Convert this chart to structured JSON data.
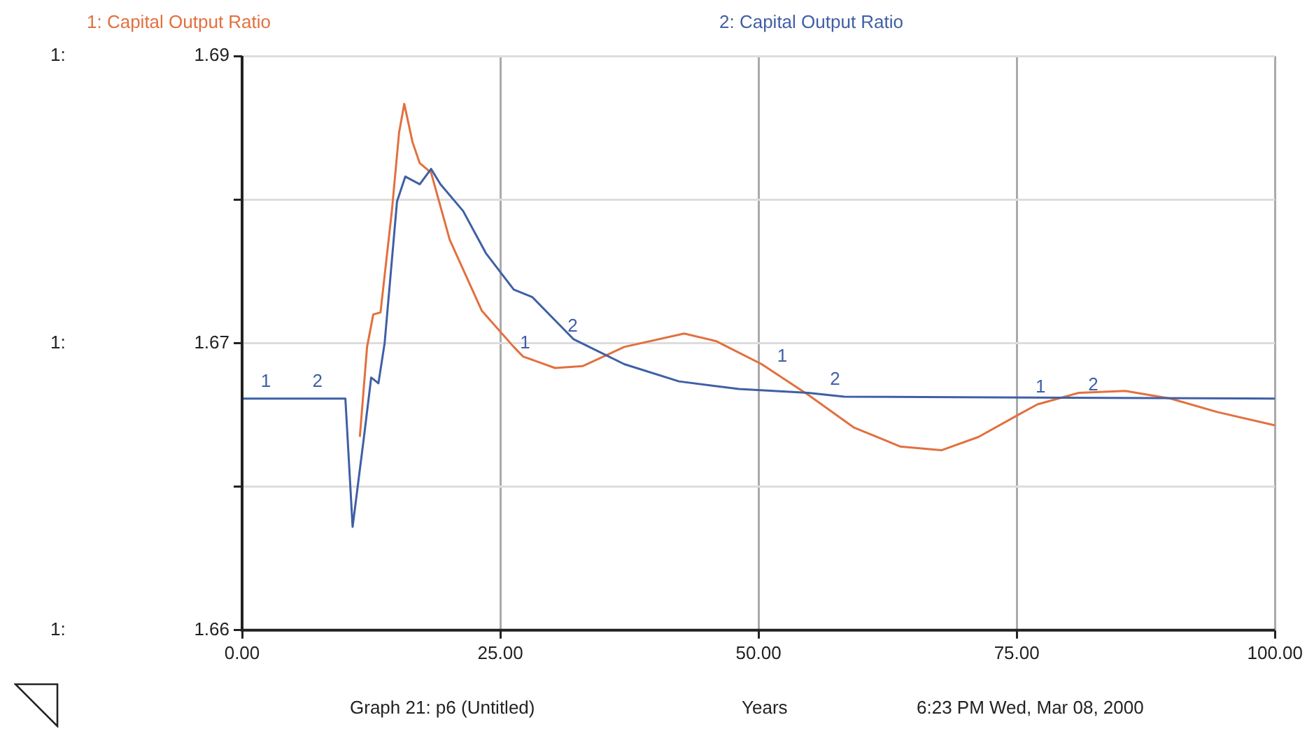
{
  "chart_data": {
    "type": "line",
    "xlabel": "Years",
    "xlim": [
      0,
      100
    ],
    "xticks": [
      {
        "value": 0,
        "label": "0.00"
      },
      {
        "value": 25,
        "label": "25.00"
      },
      {
        "value": 50,
        "label": "50.00"
      },
      {
        "value": 75,
        "label": "75.00"
      },
      {
        "value": 100,
        "label": "100.00"
      }
    ],
    "ylim": [
      1.66,
      1.69
    ],
    "yticks": [
      {
        "value": 1.66,
        "label": "1.66"
      },
      {
        "value": 1.6675,
        "label": null
      },
      {
        "value": 1.675,
        "label": "1.67"
      },
      {
        "value": 1.6825,
        "label": null
      },
      {
        "value": 1.69,
        "label": "1.69"
      }
    ],
    "grid": true,
    "legend": "top",
    "marker": "none",
    "line_style": "solid",
    "series": [
      {
        "name": "1: Capital Output Ratio",
        "color": "#e2703f",
        "x": [
          11.4,
          12.1,
          12.7,
          13.4,
          14.5,
          15.2,
          15.7,
          16.5,
          17.2,
          18.3,
          20.1,
          23.2,
          26.3,
          27.2,
          30.3,
          33.0,
          37.0,
          42.8,
          45.9,
          50.3,
          54.8,
          59.2,
          63.7,
          67.7,
          71.3,
          75.3,
          77.0,
          81.0,
          85.5,
          89.9,
          94.4,
          100
        ],
        "values": [
          1.6701,
          1.6748,
          1.6765,
          1.6766,
          1.6819,
          1.686,
          1.6875,
          1.6855,
          1.6844,
          1.6839,
          1.6804,
          1.6767,
          1.6748,
          1.6743,
          1.6737,
          1.6738,
          1.6748,
          1.6755,
          1.6751,
          1.6739,
          1.6723,
          1.6706,
          1.6696,
          1.6694,
          1.6701,
          1.6713,
          1.6718,
          1.6724,
          1.6725,
          1.6721,
          1.6714,
          1.6707
        ]
      },
      {
        "name": "2: Capital Output Ratio",
        "color": "#3f5fa6",
        "x": [
          0,
          10,
          10.7,
          11.8,
          12.5,
          13.2,
          13.8,
          15.0,
          15.8,
          17.2,
          18.3,
          19.2,
          21.4,
          23.6,
          26.3,
          28.1,
          32.1,
          37.0,
          42.3,
          48.1,
          54.8,
          58.3,
          100
        ],
        "values": [
          1.6721,
          1.6721,
          1.6654,
          1.6701,
          1.6732,
          1.6729,
          1.675,
          1.6824,
          1.6837,
          1.6833,
          1.6841,
          1.6833,
          1.6819,
          1.6797,
          1.6778,
          1.6774,
          1.6752,
          1.6739,
          1.673,
          1.6726,
          1.6724,
          1.6722,
          1.6721
        ]
      }
    ],
    "annotations": [
      {
        "text": "1",
        "x": 2.3,
        "y": 1.6721
      },
      {
        "text": "2",
        "x": 7.3,
        "y": 1.6721
      },
      {
        "text": "1",
        "x": 27.4,
        "y": 1.6741
      },
      {
        "text": "2",
        "x": 32.0,
        "y": 1.675
      },
      {
        "text": "1",
        "x": 52.3,
        "y": 1.6734
      },
      {
        "text": "2",
        "x": 57.4,
        "y": 1.6722
      },
      {
        "text": "1",
        "x": 77.3,
        "y": 1.6718
      },
      {
        "text": "2",
        "x": 82.4,
        "y": 1.6719
      },
      "Graph 21: p6 (Untitled)",
      "6:23 PM   Wed, Mar 08, 2000",
      "1:",
      "1:",
      "1:"
    ]
  }
}
